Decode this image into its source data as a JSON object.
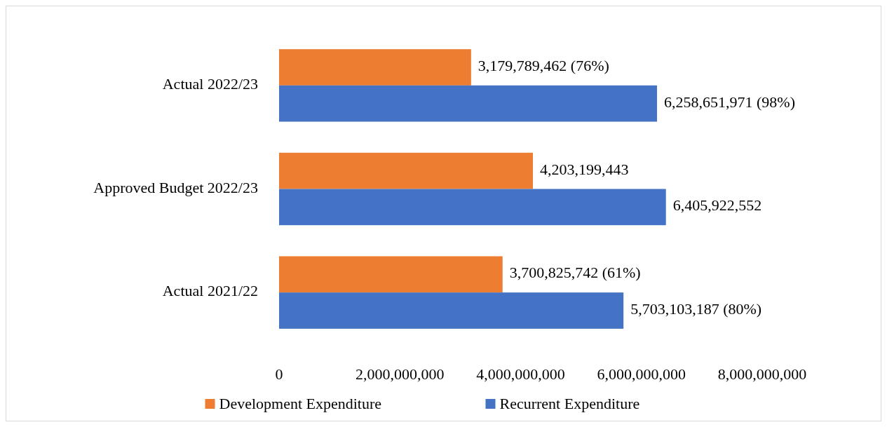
{
  "chart_data": {
    "type": "bar",
    "orientation": "horizontal",
    "categories": [
      "Actual 2022/23",
      "Approved Budget 2022/23",
      "Actual 2021/22"
    ],
    "series": [
      {
        "name": "Development Expenditure",
        "color": "#ed7d31",
        "values": [
          3179789462,
          4203199443,
          3700825742
        ],
        "value_labels": [
          "3,179,789,462 (76%)",
          "4,203,199,443",
          "3,700,825,742 (61%)"
        ]
      },
      {
        "name": "Recurrent Expenditure",
        "color": "#4472c4",
        "values": [
          6258651971,
          6405922552,
          5703103187
        ],
        "value_labels": [
          "6,258,651,971 (98%)",
          "6,405,922,552",
          "5,703,103,187 (80%)"
        ]
      }
    ],
    "xlim": [
      0,
      8000000000
    ],
    "xticks": [
      0,
      {
        "value": 2000000000,
        "label": "2,000,000,000"
      },
      {
        "value": 4000000000,
        "label": "4,000,000,000"
      },
      {
        "value": 6000000000,
        "label": "6,000,000,000"
      },
      {
        "value": 8000000000,
        "label": "8,000,000,000"
      }
    ],
    "grid": false,
    "legend": "bottom"
  }
}
